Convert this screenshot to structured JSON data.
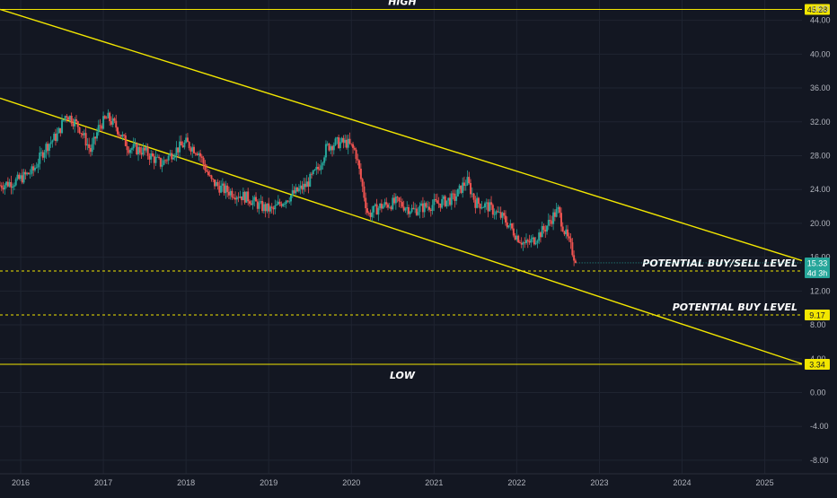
{
  "chart_data": {
    "type": "candlestick",
    "currency": "USD",
    "y_ticks": [
      -8,
      -4,
      0,
      4,
      8,
      12,
      16,
      20,
      24,
      28,
      32,
      36,
      40,
      44
    ],
    "y_tick_labels": [
      "-8.00",
      "-4.00",
      "0.00",
      "4.00",
      "8.00",
      "12.00",
      "16.00",
      "20.00",
      "24.00",
      "28.00",
      "32.00",
      "36.00",
      "40.00",
      "44.00"
    ],
    "x_ticks": [
      2016,
      2017,
      2018,
      2019,
      2020,
      2021,
      2022,
      2023,
      2024,
      2025
    ],
    "x_tick_labels": [
      "2016",
      "2017",
      "2018",
      "2019",
      "2020",
      "2021",
      "2022",
      "2023",
      "2024",
      "2025"
    ],
    "x_range": [
      2015.75,
      2025.45
    ],
    "y_range": [
      -9.6,
      46.4
    ],
    "grid": true,
    "horizontal_levels": [
      {
        "name": "high",
        "value": 45.28,
        "label": "45.28",
        "style": "solid",
        "annotation": "HIGH",
        "annotation_pos": "above"
      },
      {
        "name": "potential-buy-sell",
        "value": 14.37,
        "label": "14.37",
        "style": "dashed",
        "annotation": "POTENTIAL BUY/SELL LEVEL",
        "annotation_pos": "above"
      },
      {
        "name": "potential-buy",
        "value": 9.17,
        "label": "9.17",
        "style": "dashed",
        "annotation": "POTENTIAL BUY LEVEL",
        "annotation_pos": "above"
      },
      {
        "name": "low",
        "value": 3.34,
        "label": "3.34",
        "style": "solid",
        "annotation": "LOW",
        "annotation_pos": "below"
      }
    ],
    "trendlines": [
      {
        "name": "upper-channel",
        "points": [
          [
            2015.75,
            45.3
          ],
          [
            2025.45,
            15.6
          ]
        ]
      },
      {
        "name": "lower-channel",
        "points": [
          [
            2015.75,
            34.8
          ],
          [
            2025.45,
            3.4
          ]
        ]
      }
    ],
    "last_price": {
      "value": 15.33,
      "label": "15.33",
      "countdown": "4d 3h"
    },
    "price_path": [
      [
        2015.75,
        24.5
      ],
      [
        2015.95,
        25.0
      ],
      [
        2016.15,
        26.2
      ],
      [
        2016.3,
        29.0
      ],
      [
        2016.45,
        30.5
      ],
      [
        2016.55,
        33.0
      ],
      [
        2016.7,
        31.5
      ],
      [
        2016.85,
        28.5
      ],
      [
        2016.95,
        31.5
      ],
      [
        2017.05,
        32.5
      ],
      [
        2017.15,
        31.5
      ],
      [
        2017.3,
        29.0
      ],
      [
        2017.5,
        28.5
      ],
      [
        2017.7,
        27.0
      ],
      [
        2017.85,
        28.5
      ],
      [
        2018.0,
        29.5
      ],
      [
        2018.15,
        28.5
      ],
      [
        2018.3,
        25.0
      ],
      [
        2018.45,
        24.0
      ],
      [
        2018.6,
        23.5
      ],
      [
        2018.75,
        23.0
      ],
      [
        2018.9,
        22.0
      ],
      [
        2019.05,
        21.5
      ],
      [
        2019.15,
        22.5
      ],
      [
        2019.3,
        23.5
      ],
      [
        2019.45,
        24.5
      ],
      [
        2019.6,
        26.5
      ],
      [
        2019.7,
        29.0
      ],
      [
        2019.8,
        29.5
      ],
      [
        2019.95,
        29.5
      ],
      [
        2020.05,
        28.5
      ],
      [
        2020.12,
        25.0
      ],
      [
        2020.2,
        21.0
      ],
      [
        2020.35,
        22.0
      ],
      [
        2020.55,
        22.5
      ],
      [
        2020.75,
        21.5
      ],
      [
        2020.9,
        22.0
      ],
      [
        2021.1,
        22.5
      ],
      [
        2021.25,
        23.0
      ],
      [
        2021.35,
        24.5
      ],
      [
        2021.4,
        25.0
      ],
      [
        2021.5,
        22.5
      ],
      [
        2021.65,
        22.0
      ],
      [
        2021.85,
        20.5
      ],
      [
        2022.0,
        18.5
      ],
      [
        2022.1,
        17.5
      ],
      [
        2022.2,
        18.0
      ],
      [
        2022.35,
        19.5
      ],
      [
        2022.45,
        21.0
      ],
      [
        2022.5,
        21.5
      ],
      [
        2022.58,
        19.0
      ],
      [
        2022.68,
        16.5
      ],
      [
        2022.72,
        15.33
      ]
    ]
  }
}
